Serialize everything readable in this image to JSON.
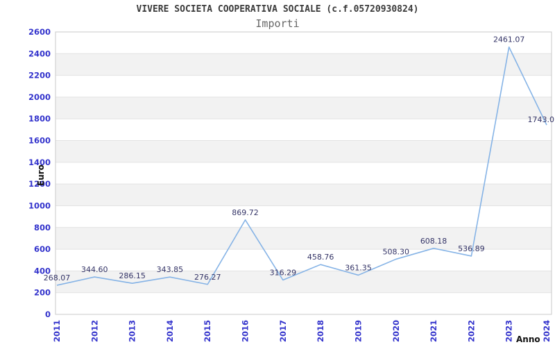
{
  "header": {
    "title": "VIVERE SOCIETA COOPERATIVA SOCIALE (c.f.05720930824)",
    "subtitle": "Importi"
  },
  "chart_data": {
    "type": "line",
    "title": "VIVERE SOCIETA COOPERATIVA SOCIALE (c.f.05720930824)",
    "subtitle": "Importi",
    "xlabel": "Anno",
    "ylabel": "Euro",
    "categories": [
      "2011",
      "2012",
      "2013",
      "2014",
      "2015",
      "2016",
      "2017",
      "2018",
      "2019",
      "2020",
      "2021",
      "2022",
      "2023",
      "2024"
    ],
    "values": [
      268.07,
      344.6,
      286.15,
      343.85,
      276.27,
      869.72,
      316.29,
      458.76,
      361.35,
      508.3,
      608.18,
      536.89,
      2461.07,
      1743.0
    ],
    "point_labels": [
      "268.07",
      "344.60",
      "286.15",
      "343.85",
      "276.27",
      "869.72",
      "316.29",
      "458.76",
      "361.35",
      "508.30",
      "608.18",
      "536.89",
      "2461.07",
      "1743.0"
    ],
    "ylim": [
      0,
      2600
    ],
    "y_ticks": [
      0,
      200,
      400,
      600,
      800,
      1000,
      1200,
      1400,
      1600,
      1800,
      2000,
      2200,
      2400,
      2600
    ],
    "grid": true,
    "plot_bands": "alternating horizontal white/gray every 200",
    "legend": "none"
  },
  "colors": {
    "line": "#85b3e6",
    "tick_label": "#3333cc",
    "point_label": "#333366",
    "band": "#f2f2f2",
    "grid": "#e2e2e2",
    "border": "#c9c9c9",
    "title": "#3a3a3a",
    "subtitle": "#666666",
    "axis_title": "#111111",
    "background": "#ffffff"
  }
}
